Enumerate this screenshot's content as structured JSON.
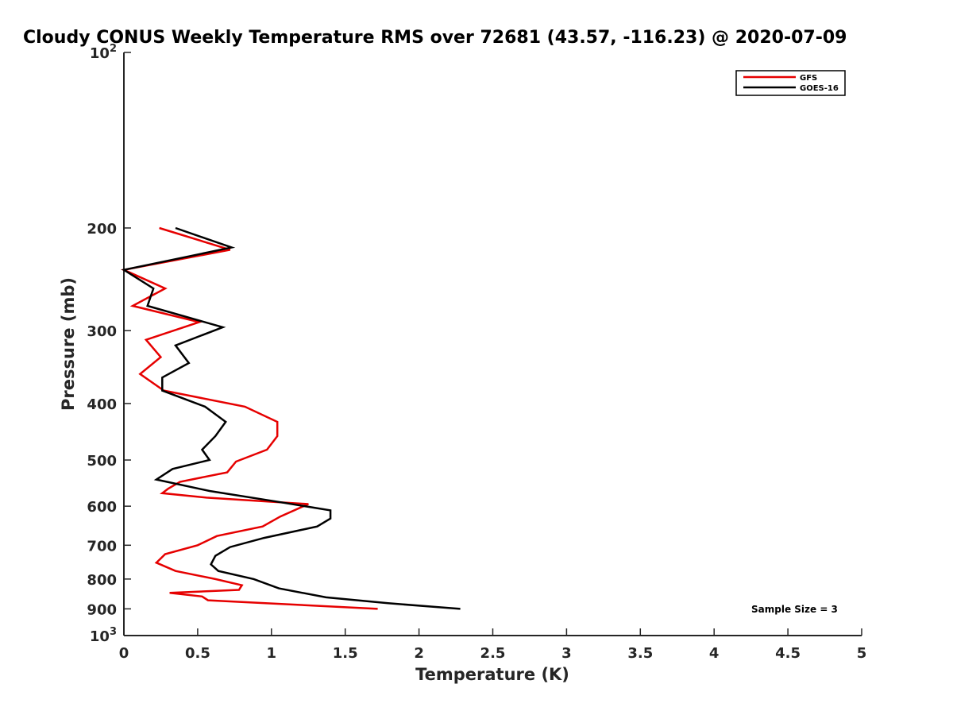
{
  "chart_data": {
    "type": "line",
    "title": "Cloudy CONUS Weekly Temperature RMS over 72681 (43.57, -116.23) @ 2020-07-09",
    "xlabel": "Temperature (K)",
    "ylabel": "Pressure (mb)",
    "xlim": [
      0,
      5
    ],
    "ylim": [
      100,
      1000
    ],
    "y_scale": "log",
    "y_reversed": true,
    "grid": false,
    "legend_position": "top-right",
    "x_ticks": [
      0,
      0.5,
      1,
      1.5,
      2,
      2.5,
      3,
      3.5,
      4,
      4.5,
      5
    ],
    "x_tick_labels": [
      "0",
      "0.5",
      "1",
      "1.5",
      "2",
      "2.5",
      "3",
      "3.5",
      "4",
      "4.5",
      "5"
    ],
    "y_ticks": [
      100,
      200,
      300,
      400,
      500,
      600,
      700,
      800,
      900,
      1000
    ],
    "y_tick_labels": [
      "10^2",
      "200",
      "300",
      "400",
      "500",
      "600",
      "700",
      "800",
      "900",
      "10^3"
    ],
    "series": [
      {
        "name": "GFS",
        "color": "#e60000",
        "x": [
          0.24,
          0.72,
          0.0,
          0.28,
          0.06,
          0.51,
          0.15,
          0.25,
          0.11,
          0.27,
          0.82,
          1.04,
          1.04,
          0.97,
          0.76,
          0.7,
          0.38,
          0.3,
          0.26,
          0.56,
          1.25,
          1.06,
          0.94,
          0.63,
          0.5,
          0.28,
          0.22,
          0.35,
          0.62,
          0.8,
          0.78,
          0.31,
          0.53,
          0.57,
          1.72
        ],
        "y": [
          200,
          218,
          236,
          254,
          272,
          290,
          311,
          333,
          356,
          380,
          405,
          430,
          455,
          480,
          503,
          525,
          545,
          560,
          570,
          580,
          595,
          625,
          650,
          675,
          700,
          725,
          750,
          775,
          800,
          820,
          835,
          845,
          857,
          870,
          900
        ]
      },
      {
        "name": "GOES-16",
        "color": "#000000",
        "x": [
          0.35,
          0.73,
          0.0,
          0.2,
          0.16,
          0.67,
          0.35,
          0.44,
          0.26,
          0.26,
          0.55,
          0.69,
          0.62,
          0.53,
          0.58,
          0.33,
          0.22,
          0.58,
          1.05,
          1.4,
          1.4,
          1.31,
          0.95,
          0.72,
          0.62,
          0.59,
          0.64,
          0.88,
          1.05,
          1.37,
          1.79,
          2.28
        ],
        "y": [
          200,
          216,
          236,
          254,
          272,
          296,
          318,
          341,
          361,
          380,
          405,
          430,
          455,
          480,
          500,
          518,
          540,
          565,
          590,
          610,
          630,
          650,
          680,
          705,
          730,
          755,
          775,
          800,
          830,
          860,
          880,
          900
        ]
      }
    ],
    "annotations": [
      "Sample Size = 3"
    ]
  }
}
